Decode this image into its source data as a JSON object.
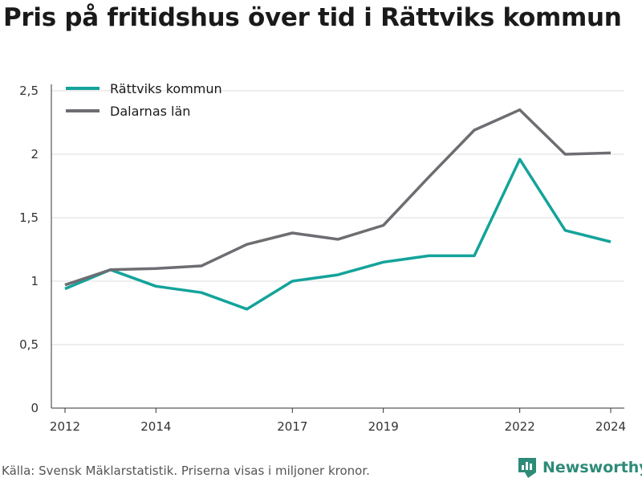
{
  "title": "Pris på fritidshus över tid i Rättviks kommun",
  "footer": {
    "source": "Källa: Svensk Mäklarstatistik. Priserna visas i miljoner kronor.",
    "brand": "Newsworthy"
  },
  "colors": {
    "rattvik": "#14a39a",
    "dalarna": "#6d6d72",
    "grid": "#dddddd",
    "axis": "#333333",
    "brand": "#2e8b78"
  },
  "chart_data": {
    "type": "line",
    "title": "Pris på fritidshus över tid i Rättviks kommun",
    "xlabel": "",
    "ylabel": "",
    "x": [
      2012,
      2013,
      2014,
      2015,
      2016,
      2017,
      2018,
      2019,
      2020,
      2021,
      2022,
      2023,
      2024
    ],
    "xlim": [
      2011.7,
      2024.3
    ],
    "ylim": [
      0,
      2.5
    ],
    "x_ticks": [
      {
        "value": 2012,
        "label": "2012"
      },
      {
        "value": 2014,
        "label": "2014"
      },
      {
        "value": 2017,
        "label": "2017"
      },
      {
        "value": 2019,
        "label": "2019"
      },
      {
        "value": 2022,
        "label": "2022"
      },
      {
        "value": 2024,
        "label": "2024"
      }
    ],
    "y_ticks": [
      {
        "value": 0,
        "label": "0"
      },
      {
        "value": 0.5,
        "label": "0,5"
      },
      {
        "value": 1,
        "label": "1"
      },
      {
        "value": 1.5,
        "label": "1,5"
      },
      {
        "value": 2,
        "label": "2"
      },
      {
        "value": 2.5,
        "label": "2,5"
      }
    ],
    "grid": true,
    "legend_position": "top-left",
    "series": [
      {
        "name": "Rättviks kommun",
        "color": "#14a39a",
        "values": [
          0.94,
          1.09,
          0.96,
          0.91,
          0.78,
          1.0,
          1.05,
          1.15,
          1.2,
          1.2,
          1.96,
          1.4,
          1.31
        ]
      },
      {
        "name": "Dalarnas län",
        "color": "#6d6d72",
        "values": [
          0.97,
          1.09,
          1.1,
          1.12,
          1.29,
          1.38,
          1.33,
          1.44,
          1.82,
          2.19,
          2.35,
          2.0,
          2.01
        ]
      }
    ]
  }
}
